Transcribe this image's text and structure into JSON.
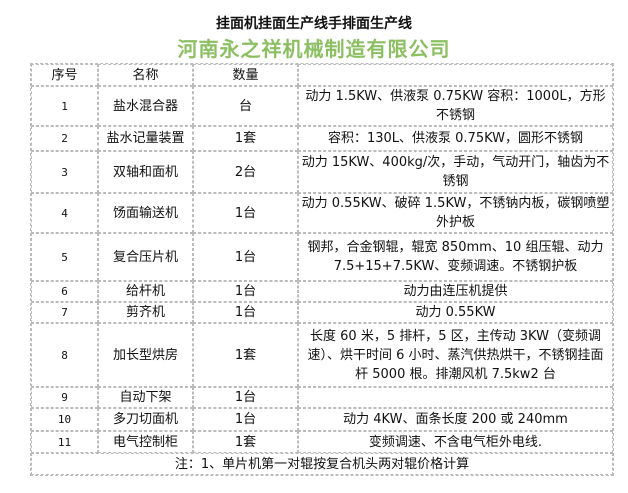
{
  "title": "挂面机挂面生产线手排面生产线",
  "headers": [
    "序号",
    "名称",
    "数量",
    ""
  ],
  "rows": [
    {
      "no": "1",
      "name": "盐水混合器",
      "qty": "台",
      "desc": "动力 1.5KW、供液泵 0.75KW 容积：1000L，方形不锈钢"
    },
    {
      "no": "2",
      "name": "盐水记量装置",
      "qty": "1套",
      "desc": "容积：130L、供液泵 0.75KW，圆形不锈钢"
    },
    {
      "no": "3",
      "name": "双轴和面机",
      "qty": "2台",
      "desc": "动力 15KW、400kg/次，手动，气动开门，轴齿为不锈钢"
    },
    {
      "no": "4",
      "name": "饧面输送机",
      "qty": "1台",
      "desc": "动力 0.55KW、破碎 1.5KW，不锈钠内板，碳钢喷塑外护板"
    },
    {
      "no": "5",
      "name": "复合压片机",
      "qty": "1台",
      "desc": "钢邦，合金钢辊，辊宽 850mm、10 组压辊、动力 7.5+15+7.5KW、变频调速。不锈钢护板"
    },
    {
      "no": "6",
      "name": "给杆机",
      "qty": "1台",
      "desc": "动力由连压机提供"
    },
    {
      "no": "7",
      "name": "剪齐机",
      "qty": "1台",
      "desc": "动力 0.55KW"
    },
    {
      "no": "8",
      "name": "加长型烘房",
      "qty": "1套",
      "desc": "长度 60 米，5 排杆，5 区，主传动 3KW（变频调速）、烘干时间 6 小时、蒸汽供热烘干，不锈钢挂面杆 5000 根。排潮风机 7.5kw2 台"
    },
    {
      "no": "9",
      "name": "自动下架",
      "qty": "1台",
      "desc": ""
    },
    {
      "no": "10",
      "name": "多刀切面机",
      "qty": "1台",
      "desc": "动力 4KW、面条长度 200 或 240mm"
    },
    {
      "no": "11",
      "name": "电气控制柜",
      "qty": "1套",
      "desc": "变频调速、不含电气柜外电线."
    }
  ],
  "note": "注：1、单片机第一对辊按复合机头两对辊价格计算",
  "watermark": "河南永之祥机械制造有限公司"
}
